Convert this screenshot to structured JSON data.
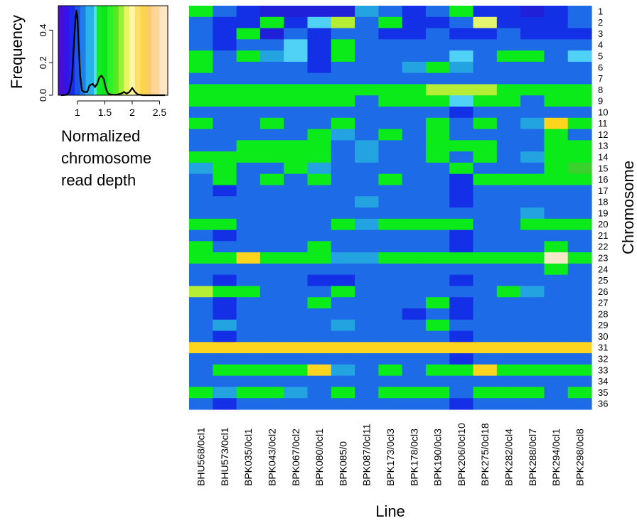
{
  "chart_data": [
    {
      "type": "heatmap",
      "xlabel": "Line",
      "ylabel": "Chromosome",
      "x": [
        "BHU568/0cl1",
        "BHU573/0cl1",
        "BPK035/0cl1",
        "BPK043/0cl2",
        "BPK067/0cl2",
        "BPK080/0cl1",
        "BPK085/0",
        "BPK087/0cl11",
        "BPK173/0cl3",
        "BPK178/0cl3",
        "BPK190/0cl3",
        "BPK206/0cl10",
        "BPK275/0cl18",
        "BPK282/0cl4",
        "BPK288/0cl7",
        "BPK294/0cl1",
        "BPK298/0cl8"
      ],
      "y": [
        "1",
        "2",
        "3",
        "4",
        "5",
        "6",
        "7",
        "8",
        "9",
        "10",
        "11",
        "12",
        "13",
        "14",
        "15",
        "16",
        "17",
        "18",
        "19",
        "20",
        "21",
        "22",
        "23",
        "24",
        "25",
        "26",
        "27",
        "28",
        "29",
        "30",
        "31",
        "32",
        "33",
        "34",
        "35",
        "36"
      ],
      "values": [
        [
          1.4,
          1.1,
          1.0,
          0.8,
          0.8,
          0.8,
          0.9,
          1.2,
          1.1,
          1.0,
          1.1,
          1.4,
          1.0,
          1.0,
          0.9,
          1.0,
          1.1
        ],
        [
          1.1,
          1.0,
          1.0,
          1.4,
          1.0,
          1.3,
          1.7,
          1.1,
          1.4,
          1.0,
          1.0,
          1.1,
          1.8,
          1.0,
          1.0,
          1.0,
          1.1
        ],
        [
          1.1,
          1.0,
          1.4,
          0.8,
          1.1,
          1.0,
          1.15,
          1.1,
          1.0,
          1.0,
          1.1,
          1.0,
          1.0,
          1.1,
          1.0,
          1.0,
          1.0
        ],
        [
          1.1,
          1.0,
          1.1,
          1.1,
          1.3,
          1.0,
          1.4,
          1.1,
          1.1,
          1.1,
          1.1,
          1.1,
          1.1,
          1.1,
          1.15,
          1.1,
          1.1
        ],
        [
          1.4,
          1.15,
          1.4,
          1.2,
          1.3,
          1.0,
          1.4,
          1.1,
          1.1,
          1.1,
          1.1,
          1.3,
          1.1,
          1.4,
          1.4,
          1.1,
          1.3
        ],
        [
          1.4,
          1.1,
          1.1,
          1.1,
          1.1,
          1.0,
          1.1,
          1.1,
          1.1,
          1.25,
          1.4,
          1.25,
          1.1,
          1.1,
          1.1,
          1.1,
          1.1
        ],
        [
          1.1,
          1.1,
          1.1,
          1.1,
          1.1,
          1.1,
          1.1,
          1.15,
          1.15,
          1.1,
          1.1,
          1.1,
          1.1,
          1.1,
          1.1,
          1.1,
          1.1
        ],
        [
          1.4,
          1.4,
          1.4,
          1.4,
          1.4,
          1.4,
          1.4,
          1.4,
          1.4,
          1.4,
          1.6,
          1.65,
          1.6,
          1.4,
          1.4,
          1.4,
          1.4
        ],
        [
          1.4,
          1.4,
          1.4,
          1.4,
          1.4,
          1.4,
          1.4,
          1.15,
          1.4,
          1.4,
          1.4,
          1.3,
          1.4,
          1.4,
          1.15,
          1.4,
          1.4
        ],
        [
          1.1,
          1.15,
          1.1,
          1.1,
          1.1,
          1.1,
          1.1,
          1.1,
          1.1,
          1.1,
          1.1,
          1.0,
          1.1,
          1.1,
          1.1,
          1.1,
          1.1
        ],
        [
          1.4,
          1.1,
          1.1,
          1.4,
          1.1,
          1.1,
          1.4,
          1.1,
          1.1,
          1.1,
          1.4,
          1.1,
          1.4,
          1.1,
          1.25,
          1.95,
          1.4
        ],
        [
          1.1,
          1.1,
          1.1,
          1.1,
          1.1,
          1.4,
          1.25,
          1.1,
          1.4,
          1.1,
          1.4,
          1.1,
          1.1,
          1.1,
          1.1,
          1.4,
          1.1
        ],
        [
          1.1,
          1.1,
          1.4,
          1.4,
          1.4,
          1.4,
          1.1,
          1.2,
          1.1,
          1.1,
          1.4,
          1.4,
          1.4,
          1.15,
          1.1,
          1.4,
          1.4
        ],
        [
          1.4,
          1.4,
          1.4,
          1.4,
          1.4,
          1.4,
          1.1,
          1.25,
          1.1,
          1.1,
          1.4,
          1.1,
          1.4,
          1.1,
          1.2,
          1.4,
          1.4
        ],
        [
          1.2,
          1.4,
          1.1,
          1.1,
          1.4,
          1.25,
          1.1,
          1.1,
          1.1,
          1.1,
          1.1,
          1.4,
          1.1,
          1.1,
          1.1,
          1.4,
          1.5
        ],
        [
          1.1,
          1.4,
          1.1,
          1.4,
          1.1,
          1.4,
          1.1,
          1.1,
          1.4,
          1.1,
          1.15,
          1.0,
          1.4,
          1.4,
          1.4,
          1.4,
          1.4
        ],
        [
          1.1,
          1.05,
          1.1,
          1.1,
          1.1,
          1.1,
          1.1,
          1.1,
          1.1,
          1.1,
          1.1,
          1.0,
          1.1,
          1.1,
          1.1,
          1.1,
          1.1
        ],
        [
          1.1,
          1.1,
          1.1,
          1.1,
          1.1,
          1.1,
          1.1,
          1.2,
          1.1,
          1.1,
          1.1,
          1.0,
          1.1,
          1.1,
          1.1,
          1.1,
          1.1
        ],
        [
          1.1,
          1.15,
          1.1,
          1.1,
          1.1,
          1.1,
          1.1,
          1.1,
          1.1,
          1.1,
          1.1,
          1.1,
          1.1,
          1.1,
          1.2,
          1.1,
          1.1
        ],
        [
          1.4,
          1.4,
          1.1,
          1.1,
          1.1,
          1.1,
          1.4,
          1.2,
          1.4,
          1.4,
          1.4,
          1.4,
          1.1,
          1.1,
          1.4,
          1.4,
          1.4
        ],
        [
          1.1,
          1.0,
          1.1,
          1.1,
          1.1,
          1.1,
          1.1,
          1.1,
          1.1,
          1.1,
          1.1,
          1.0,
          1.1,
          1.1,
          1.1,
          1.1,
          1.1
        ],
        [
          1.4,
          1.1,
          1.1,
          1.1,
          1.1,
          1.4,
          1.1,
          1.1,
          1.1,
          1.1,
          1.1,
          1.0,
          1.1,
          1.1,
          1.1,
          1.4,
          1.1
        ],
        [
          1.4,
          1.4,
          1.95,
          1.4,
          1.4,
          1.4,
          1.2,
          1.25,
          1.4,
          1.4,
          1.4,
          1.4,
          1.4,
          1.4,
          1.4,
          2.4,
          1.4
        ],
        [
          1.1,
          1.1,
          1.1,
          1.1,
          1.1,
          1.1,
          1.1,
          1.1,
          1.1,
          1.1,
          1.1,
          1.1,
          1.1,
          1.1,
          1.1,
          1.4,
          1.1
        ],
        [
          1.1,
          1.05,
          1.1,
          1.1,
          1.1,
          1.05,
          1.05,
          1.1,
          1.1,
          1.1,
          1.1,
          1.0,
          1.1,
          1.1,
          1.1,
          1.1,
          1.1
        ],
        [
          1.6,
          1.4,
          1.4,
          1.1,
          1.1,
          1.1,
          1.4,
          1.1,
          1.1,
          1.1,
          1.1,
          1.1,
          1.1,
          1.4,
          1.25,
          1.1,
          1.1
        ],
        [
          1.1,
          1.0,
          1.1,
          1.1,
          1.15,
          1.4,
          1.1,
          1.1,
          1.1,
          1.1,
          1.4,
          1.0,
          1.1,
          1.1,
          1.1,
          1.1,
          1.1
        ],
        [
          1.1,
          1.0,
          1.1,
          1.1,
          1.15,
          1.1,
          1.1,
          1.1,
          1.1,
          1.05,
          1.1,
          1.0,
          1.1,
          1.1,
          1.1,
          1.1,
          1.1
        ],
        [
          1.1,
          1.25,
          1.1,
          1.1,
          1.15,
          1.1,
          1.2,
          1.1,
          1.1,
          1.1,
          1.4,
          1.1,
          1.1,
          1.1,
          1.1,
          1.1,
          1.1
        ],
        [
          1.1,
          1.0,
          1.1,
          1.1,
          1.1,
          1.1,
          1.1,
          1.1,
          1.1,
          1.1,
          1.1,
          1.0,
          1.1,
          1.1,
          1.1,
          1.1,
          1.1
        ],
        [
          1.95,
          1.95,
          1.95,
          1.95,
          1.95,
          1.95,
          1.95,
          1.95,
          1.95,
          1.95,
          1.95,
          1.95,
          1.95,
          1.95,
          1.95,
          1.95,
          1.95
        ],
        [
          1.1,
          1.1,
          1.1,
          1.15,
          1.1,
          1.1,
          1.1,
          1.1,
          1.1,
          1.1,
          1.1,
          1.0,
          1.1,
          1.1,
          1.1,
          1.1,
          1.1
        ],
        [
          1.1,
          1.4,
          1.4,
          1.4,
          1.4,
          1.95,
          1.25,
          1.1,
          1.4,
          1.1,
          1.4,
          1.4,
          1.95,
          1.4,
          1.4,
          1.4,
          1.4
        ],
        [
          1.1,
          1.1,
          1.1,
          1.1,
          1.15,
          1.1,
          1.1,
          1.1,
          1.1,
          1.1,
          1.1,
          1.1,
          1.1,
          1.1,
          1.1,
          1.1,
          1.1
        ],
        [
          1.4,
          1.25,
          1.4,
          1.4,
          1.2,
          1.1,
          1.4,
          1.1,
          1.4,
          1.4,
          1.4,
          1.15,
          1.4,
          1.4,
          1.4,
          1.1,
          1.4
        ],
        [
          1.1,
          1.0,
          1.1,
          1.1,
          1.1,
          1.1,
          1.1,
          1.1,
          1.1,
          1.1,
          1.1,
          1.0,
          1.1,
          1.1,
          1.1,
          1.1,
          1.1
        ]
      ],
      "colors": {
        "v0.7": "#3a1de0",
        "v0.85": "#2020d8",
        "v1.0": "#1430e6",
        "v1.1": "#1e6be8",
        "v1.2": "#23a3e0",
        "v1.3": "#4fd2f5",
        "v1.4": "#0ceb1a",
        "v1.5": "#3ad12c",
        "v1.6": "#b6ee36",
        "v1.8": "#e6f570",
        "v1.95": "#fdd41e",
        "v2.4": "#f5e8c8"
      },
      "grid": false
    },
    {
      "type": "line",
      "title": "",
      "xlabel": "Normalized chromosome read depth",
      "ylabel": "Frequency",
      "xlim": [
        0.65,
        2.65
      ],
      "ylim": [
        0,
        0.55
      ],
      "xticks": [
        "1",
        "1.5",
        "2",
        "2.5"
      ],
      "yticks": [
        "0.0",
        "0.2",
        "0.4"
      ],
      "x": [
        0.7,
        0.8,
        0.85,
        0.9,
        0.93,
        0.96,
        0.98,
        1.0,
        1.02,
        1.05,
        1.08,
        1.12,
        1.18,
        1.22,
        1.28,
        1.32,
        1.36,
        1.4,
        1.44,
        1.48,
        1.52,
        1.56,
        1.6,
        1.7,
        1.8,
        1.85,
        1.9,
        1.95,
        2.0,
        2.05,
        2.1,
        2.2,
        2.4,
        2.6
      ],
      "y": [
        0.0,
        0.002,
        0.02,
        0.1,
        0.28,
        0.45,
        0.52,
        0.48,
        0.32,
        0.12,
        0.03,
        0.02,
        0.02,
        0.06,
        0.07,
        0.05,
        0.07,
        0.11,
        0.12,
        0.1,
        0.04,
        0.01,
        0.005,
        0.002,
        0.01,
        0.02,
        0.01,
        0.02,
        0.045,
        0.02,
        0.005,
        0.0,
        0.0,
        0.0
      ],
      "band_edges": [
        0.65,
        0.75,
        0.85,
        0.95,
        1.05,
        1.15,
        1.3,
        1.35,
        1.45,
        1.55,
        1.65,
        1.75,
        1.85,
        1.95,
        2.05,
        2.15,
        2.25,
        2.35,
        2.5,
        2.65
      ],
      "band_colors": [
        "#4b0cd6",
        "#3414e6",
        "#1a2bf0",
        "#1a55e8",
        "#1f7fe6",
        "#29b2ea",
        "#55dcf3",
        "#12e92a",
        "#0ee31c",
        "#2ef228",
        "#58e820",
        "#9cf03a",
        "#e8f560",
        "#fff7a6",
        "#fde06c",
        "#fdd54a",
        "#fecb6c",
        "#fed69c",
        "#fde6c4"
      ]
    }
  ]
}
